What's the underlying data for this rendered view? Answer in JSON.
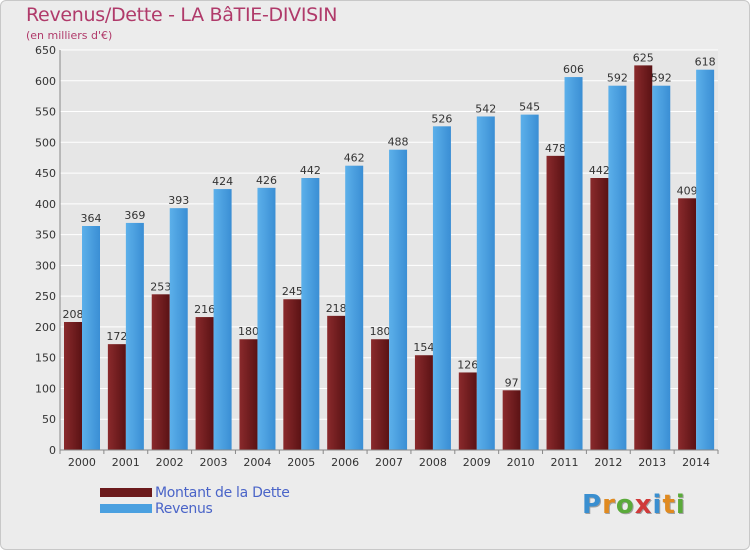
{
  "header": {
    "title": "Revenus/Dette - LA BâTIE-DIVISIN",
    "subtitle": "(en milliers d'€)"
  },
  "legend": {
    "items": [
      {
        "label": "Montant de la Dette",
        "color": "#6b1a1c"
      },
      {
        "label": "Revenus",
        "color": "#4aa0e0"
      }
    ]
  },
  "logo": {
    "text": "Proxiti",
    "letter_colors": [
      "#3a8fd0",
      "#e08a20",
      "#5aaa3a",
      "#d03a3a",
      "#3a8fd0",
      "#e08a20",
      "#5aaa3a"
    ]
  },
  "colors": {
    "dette": "#6b1a1c",
    "revenus": "#4aa0e0",
    "grid": "#ffffff",
    "axis_text": "#333333"
  },
  "chart_data": {
    "type": "bar",
    "categories": [
      "2000",
      "2001",
      "2002",
      "2003",
      "2004",
      "2005",
      "2006",
      "2007",
      "2008",
      "2009",
      "2010",
      "2011",
      "2012",
      "2013",
      "2014"
    ],
    "series": [
      {
        "name": "Montant de la Dette",
        "values": [
          208,
          172,
          253,
          216,
          180,
          245,
          218,
          180,
          154,
          126,
          97,
          478,
          442,
          625,
          409
        ]
      },
      {
        "name": "Revenus",
        "values": [
          364,
          369,
          393,
          424,
          426,
          442,
          462,
          488,
          526,
          542,
          545,
          606,
          592,
          592,
          618
        ]
      }
    ],
    "ylim": [
      0,
      650
    ],
    "yticks": [
      0,
      50,
      100,
      150,
      200,
      250,
      300,
      350,
      400,
      450,
      500,
      550,
      600,
      650
    ],
    "grid": true,
    "legend_position": "bottom-left"
  }
}
